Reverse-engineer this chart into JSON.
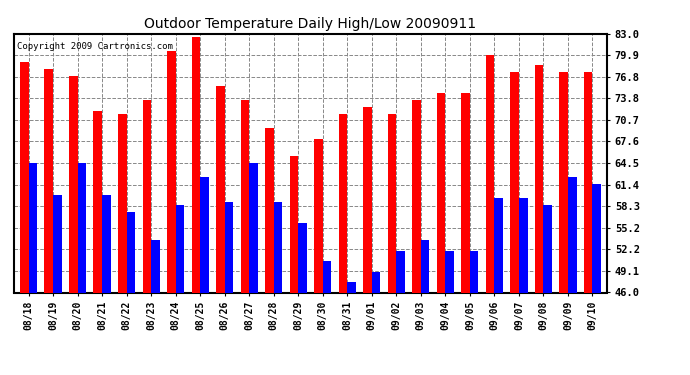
{
  "title": "Outdoor Temperature Daily High/Low 20090911",
  "copyright": "Copyright 2009 Cartronics.com",
  "dates": [
    "08/18",
    "08/19",
    "08/20",
    "08/21",
    "08/22",
    "08/23",
    "08/24",
    "08/25",
    "08/26",
    "08/27",
    "08/28",
    "08/29",
    "08/30",
    "08/31",
    "09/01",
    "09/02",
    "09/03",
    "09/04",
    "09/05",
    "09/06",
    "09/07",
    "09/08",
    "09/09",
    "09/10"
  ],
  "highs": [
    79.0,
    78.0,
    77.0,
    72.0,
    71.5,
    73.5,
    80.5,
    82.5,
    75.5,
    73.5,
    69.5,
    65.5,
    68.0,
    71.5,
    72.5,
    71.5,
    73.5,
    74.5,
    74.5,
    80.0,
    77.5,
    78.5,
    77.5,
    77.5
  ],
  "lows": [
    64.5,
    60.0,
    64.5,
    60.0,
    57.5,
    53.5,
    58.5,
    62.5,
    59.0,
    64.5,
    59.0,
    56.0,
    50.5,
    47.5,
    49.0,
    52.0,
    53.5,
    52.0,
    52.0,
    59.5,
    59.5,
    58.5,
    62.5,
    61.5
  ],
  "high_color": "#ff0000",
  "low_color": "#0000ff",
  "bg_color": "#ffffff",
  "grid_color": "#888888",
  "ymin": 46.0,
  "ymax": 83.0,
  "yticks": [
    46.0,
    49.1,
    52.2,
    55.2,
    58.3,
    61.4,
    64.5,
    67.6,
    70.7,
    73.8,
    76.8,
    79.9,
    83.0
  ],
  "bar_width": 0.35,
  "figsize": [
    6.9,
    3.75
  ],
  "dpi": 100
}
